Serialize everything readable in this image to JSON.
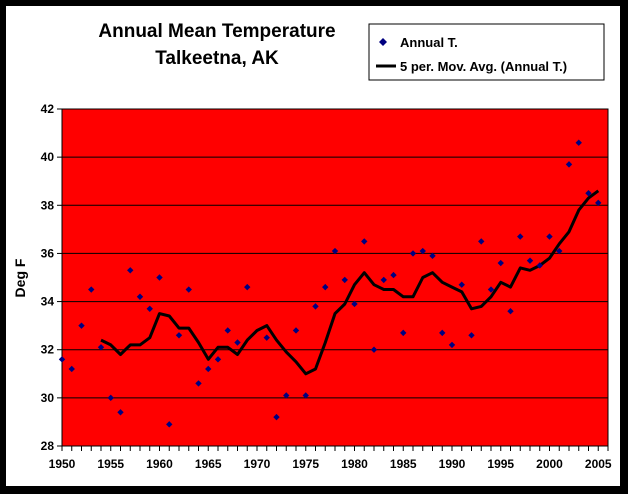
{
  "chart_data": {
    "type": "scatter",
    "title": [
      "Annual Mean Temperature",
      "Talkeetna, AK"
    ],
    "xlabel": "",
    "ylabel": "Deg F",
    "xlim": [
      1950,
      2006
    ],
    "ylim": [
      28,
      42
    ],
    "xticks": [
      1950,
      1955,
      1960,
      1965,
      1970,
      1975,
      1980,
      1985,
      1990,
      1995,
      2000,
      2005
    ],
    "yticks": [
      28,
      30,
      32,
      34,
      36,
      38,
      40,
      42
    ],
    "grid": true,
    "plot_background": "#ff0000",
    "legend_position": "top-right",
    "series": [
      {
        "name": "Annual T.",
        "kind": "scatter",
        "color": "#000080",
        "x": [
          1950,
          1951,
          1952,
          1953,
          1954,
          1955,
          1956,
          1957,
          1958,
          1959,
          1960,
          1961,
          1962,
          1963,
          1964,
          1965,
          1966,
          1967,
          1968,
          1969,
          1971,
          1972,
          1973,
          1974,
          1975,
          1976,
          1977,
          1978,
          1979,
          1980,
          1981,
          1982,
          1983,
          1984,
          1985,
          1986,
          1987,
          1988,
          1989,
          1990,
          1991,
          1992,
          1993,
          1994,
          1995,
          1996,
          1997,
          1998,
          1999,
          2000,
          2001,
          2002,
          2003,
          2004,
          2005
        ],
        "y": [
          31.6,
          31.2,
          33.0,
          34.5,
          32.1,
          30.0,
          29.4,
          35.3,
          34.2,
          33.7,
          35.0,
          28.9,
          32.6,
          34.5,
          30.6,
          31.2,
          31.6,
          32.8,
          32.3,
          34.6,
          32.5,
          29.2,
          30.1,
          32.8,
          30.1,
          33.8,
          34.6,
          36.1,
          34.9,
          33.9,
          36.5,
          32.0,
          34.9,
          35.1,
          32.7,
          36.0,
          36.1,
          35.9,
          32.7,
          32.2,
          34.7,
          32.6,
          36.5,
          34.5,
          35.6,
          33.6,
          36.7,
          35.7,
          35.5,
          36.7,
          36.1,
          39.7,
          40.6,
          38.5,
          38.1
        ]
      },
      {
        "name": "5 per. Mov. Avg. (Annual T.)",
        "kind": "line",
        "color": "#000000",
        "x": [
          1954,
          1955,
          1956,
          1957,
          1958,
          1959,
          1960,
          1961,
          1962,
          1963,
          1964,
          1965,
          1966,
          1967,
          1968,
          1969,
          1970,
          1971,
          1972,
          1973,
          1974,
          1975,
          1976,
          1977,
          1978,
          1979,
          1980,
          1981,
          1982,
          1983,
          1984,
          1985,
          1986,
          1987,
          1988,
          1989,
          1990,
          1991,
          1992,
          1993,
          1994,
          1995,
          1996,
          1997,
          1998,
          1999,
          2000,
          2001,
          2002,
          2003,
          2004,
          2005
        ],
        "y": [
          32.4,
          32.2,
          31.8,
          32.2,
          32.2,
          32.5,
          33.5,
          33.4,
          32.9,
          32.9,
          32.3,
          31.6,
          32.1,
          32.1,
          31.8,
          32.4,
          32.8,
          33.0,
          32.4,
          31.9,
          31.5,
          31.0,
          31.2,
          32.3,
          33.5,
          33.9,
          34.7,
          35.2,
          34.7,
          34.5,
          34.5,
          34.2,
          34.2,
          35.0,
          35.2,
          34.8,
          34.6,
          34.4,
          33.7,
          33.8,
          34.2,
          34.8,
          34.6,
          35.4,
          35.3,
          35.5,
          35.8,
          36.4,
          36.9,
          37.8,
          38.3,
          38.6
        ]
      }
    ]
  }
}
